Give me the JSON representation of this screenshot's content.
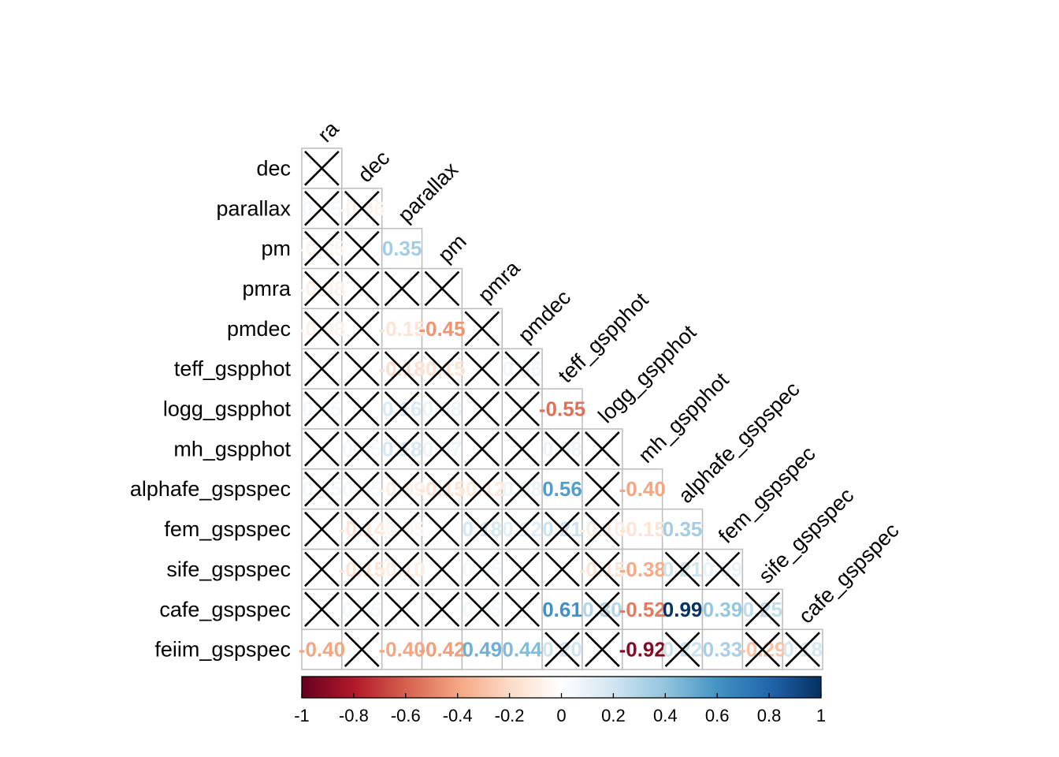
{
  "chart_data": {
    "type": "heatmap",
    "variables": [
      "ra",
      "dec",
      "parallax",
      "pm",
      "pmra",
      "pmdec",
      "teff_gspphot",
      "logg_gspphot",
      "mh_gspphot",
      "alphafe_gspspec",
      "fem_gspspec",
      "sife_gspspec",
      "cafe_gspspec",
      "feiim_gspspec"
    ],
    "row_labels": [
      "dec",
      "parallax",
      "pm",
      "pmra",
      "pmdec",
      "teff_gspphot",
      "logg_gspphot",
      "mh_gspphot",
      "alphafe_gspspec",
      "fem_gspspec",
      "sife_gspspec",
      "cafe_gspspec",
      "feiim_gspspec"
    ],
    "col_labels": [
      "ra",
      "dec",
      "parallax",
      "pm",
      "pmra",
      "pmdec",
      "teff_gspphot",
      "logg_gspphot",
      "mh_gspphot",
      "alphafe_gspspec",
      "fem_gspspec",
      "sife_gspspec",
      "cafe_gspspec"
    ],
    "cells": [
      {
        "row": "dec",
        "col": "ra",
        "value": null,
        "insignificant": true
      },
      {
        "row": "parallax",
        "col": "ra",
        "value": 0.05,
        "insignificant": true
      },
      {
        "row": "parallax",
        "col": "dec",
        "value": -0.06,
        "insignificant": true
      },
      {
        "row": "pm",
        "col": "ra",
        "value": -0.05,
        "insignificant": true
      },
      {
        "row": "pm",
        "col": "dec",
        "value": null,
        "insignificant": true
      },
      {
        "row": "pm",
        "col": "parallax",
        "value": 0.35,
        "insignificant": false
      },
      {
        "row": "pmra",
        "col": "ra",
        "value": -0.08,
        "insignificant": true
      },
      {
        "row": "pmra",
        "col": "dec",
        "value": null,
        "insignificant": true
      },
      {
        "row": "pmra",
        "col": "parallax",
        "value": null,
        "insignificant": true
      },
      {
        "row": "pmra",
        "col": "pm",
        "value": null,
        "insignificant": true
      },
      {
        "row": "pmdec",
        "col": "ra",
        "value": -0.08,
        "insignificant": true
      },
      {
        "row": "pmdec",
        "col": "dec",
        "value": null,
        "insignificant": true
      },
      {
        "row": "pmdec",
        "col": "parallax",
        "value": -0.15,
        "insignificant": false
      },
      {
        "row": "pmdec",
        "col": "pm",
        "value": -0.45,
        "insignificant": false
      },
      {
        "row": "pmdec",
        "col": "pmra",
        "value": null,
        "insignificant": true
      },
      {
        "row": "teff_gspphot",
        "col": "ra",
        "value": null,
        "insignificant": true
      },
      {
        "row": "teff_gspphot",
        "col": "dec",
        "value": null,
        "insignificant": true
      },
      {
        "row": "teff_gspphot",
        "col": "parallax",
        "value": -0.18,
        "insignificant": true
      },
      {
        "row": "teff_gspphot",
        "col": "pm",
        "value": -0.15,
        "insignificant": true
      },
      {
        "row": "teff_gspphot",
        "col": "pmra",
        "value": null,
        "insignificant": true
      },
      {
        "row": "teff_gspphot",
        "col": "pmdec",
        "value": 0.06,
        "insignificant": true
      },
      {
        "row": "logg_gspphot",
        "col": "ra",
        "value": 0.05,
        "insignificant": true
      },
      {
        "row": "logg_gspphot",
        "col": "dec",
        "value": null,
        "insignificant": true
      },
      {
        "row": "logg_gspphot",
        "col": "parallax",
        "value": 0.16,
        "insignificant": true
      },
      {
        "row": "logg_gspphot",
        "col": "pm",
        "value": 0.08,
        "insignificant": true
      },
      {
        "row": "logg_gspphot",
        "col": "pmra",
        "value": null,
        "insignificant": true
      },
      {
        "row": "logg_gspphot",
        "col": "pmdec",
        "value": null,
        "insignificant": true
      },
      {
        "row": "logg_gspphot",
        "col": "teff_gspphot",
        "value": -0.55,
        "insignificant": false
      },
      {
        "row": "mh_gspphot",
        "col": "ra",
        "value": null,
        "insignificant": true
      },
      {
        "row": "mh_gspphot",
        "col": "dec",
        "value": 0.05,
        "insignificant": true
      },
      {
        "row": "mh_gspphot",
        "col": "parallax",
        "value": 0.18,
        "insignificant": true
      },
      {
        "row": "mh_gspphot",
        "col": "pm",
        "value": 0.07,
        "insignificant": true
      },
      {
        "row": "mh_gspphot",
        "col": "pmra",
        "value": null,
        "insignificant": true
      },
      {
        "row": "mh_gspphot",
        "col": "pmdec",
        "value": null,
        "insignificant": true
      },
      {
        "row": "mh_gspphot",
        "col": "teff_gspphot",
        "value": 0.08,
        "insignificant": true
      },
      {
        "row": "mh_gspphot",
        "col": "logg_gspphot",
        "value": null,
        "insignificant": true
      },
      {
        "row": "alphafe_gspspec",
        "col": "ra",
        "value": 0.05,
        "insignificant": true
      },
      {
        "row": "alphafe_gspspec",
        "col": "dec",
        "value": 0.05,
        "insignificant": true
      },
      {
        "row": "alphafe_gspspec",
        "col": "parallax",
        "value": -0.09,
        "insignificant": true
      },
      {
        "row": "alphafe_gspspec",
        "col": "pm",
        "value": -0.15,
        "insignificant": true
      },
      {
        "row": "alphafe_gspspec",
        "col": "pmra",
        "value": -0.12,
        "insignificant": true
      },
      {
        "row": "alphafe_gspspec",
        "col": "pmdec",
        "value": 0.08,
        "insignificant": true
      },
      {
        "row": "alphafe_gspspec",
        "col": "teff_gspphot",
        "value": 0.56,
        "insignificant": false
      },
      {
        "row": "alphafe_gspspec",
        "col": "logg_gspphot",
        "value": null,
        "insignificant": true
      },
      {
        "row": "alphafe_gspspec",
        "col": "mh_gspphot",
        "value": -0.4,
        "insignificant": false
      },
      {
        "row": "fem_gspspec",
        "col": "ra",
        "value": null,
        "insignificant": true
      },
      {
        "row": "fem_gspspec",
        "col": "dec",
        "value": -0.14,
        "insignificant": true
      },
      {
        "row": "fem_gspspec",
        "col": "parallax",
        "value": -0.05,
        "insignificant": true
      },
      {
        "row": "fem_gspspec",
        "col": "pm",
        "value": null,
        "insignificant": true
      },
      {
        "row": "fem_gspspec",
        "col": "pmra",
        "value": 0.18,
        "insignificant": true
      },
      {
        "row": "fem_gspspec",
        "col": "pmdec",
        "value": 0.12,
        "insignificant": true
      },
      {
        "row": "fem_gspspec",
        "col": "teff_gspphot",
        "value": 0.21,
        "insignificant": true
      },
      {
        "row": "fem_gspspec",
        "col": "logg_gspphot",
        "value": -0.1,
        "insignificant": true
      },
      {
        "row": "fem_gspspec",
        "col": "mh_gspphot",
        "value": -0.15,
        "insignificant": false
      },
      {
        "row": "fem_gspspec",
        "col": "alphafe_gspspec",
        "value": 0.35,
        "insignificant": false
      },
      {
        "row": "sife_gspspec",
        "col": "ra",
        "value": null,
        "insignificant": true
      },
      {
        "row": "sife_gspspec",
        "col": "dec",
        "value": -0.15,
        "insignificant": true
      },
      {
        "row": "sife_gspspec",
        "col": "parallax",
        "value": -0.1,
        "insignificant": true
      },
      {
        "row": "sife_gspspec",
        "col": "pm",
        "value": null,
        "insignificant": true
      },
      {
        "row": "sife_gspspec",
        "col": "pmra",
        "value": 0.05,
        "insignificant": true
      },
      {
        "row": "sife_gspspec",
        "col": "pmdec",
        "value": null,
        "insignificant": true
      },
      {
        "row": "sife_gspspec",
        "col": "teff_gspphot",
        "value": null,
        "insignificant": true
      },
      {
        "row": "sife_gspspec",
        "col": "logg_gspphot",
        "value": -0.15,
        "insignificant": true
      },
      {
        "row": "sife_gspspec",
        "col": "mh_gspphot",
        "value": -0.38,
        "insignificant": false
      },
      {
        "row": "sife_gspspec",
        "col": "alphafe_gspspec",
        "value": 0.21,
        "insignificant": true
      },
      {
        "row": "sife_gspspec",
        "col": "fem_gspspec",
        "value": 0.09,
        "insignificant": true
      },
      {
        "row": "cafe_gspspec",
        "col": "ra",
        "value": null,
        "insignificant": true
      },
      {
        "row": "cafe_gspspec",
        "col": "dec",
        "value": 0.05,
        "insignificant": true
      },
      {
        "row": "cafe_gspspec",
        "col": "parallax",
        "value": null,
        "insignificant": true
      },
      {
        "row": "cafe_gspspec",
        "col": "pm",
        "value": null,
        "insignificant": true
      },
      {
        "row": "cafe_gspspec",
        "col": "pmra",
        "value": 0.05,
        "insignificant": true
      },
      {
        "row": "cafe_gspspec",
        "col": "pmdec",
        "value": null,
        "insignificant": true
      },
      {
        "row": "cafe_gspspec",
        "col": "teff_gspphot",
        "value": 0.61,
        "insignificant": false
      },
      {
        "row": "cafe_gspspec",
        "col": "logg_gspphot",
        "value": 0.3,
        "insignificant": true
      },
      {
        "row": "cafe_gspspec",
        "col": "mh_gspphot",
        "value": -0.52,
        "insignificant": false
      },
      {
        "row": "cafe_gspspec",
        "col": "alphafe_gspspec",
        "value": 0.99,
        "insignificant": false
      },
      {
        "row": "cafe_gspspec",
        "col": "fem_gspspec",
        "value": 0.39,
        "insignificant": false
      },
      {
        "row": "cafe_gspspec",
        "col": "sife_gspspec",
        "value": 0.25,
        "insignificant": true
      },
      {
        "row": "feiim_gspspec",
        "col": "ra",
        "value": -0.4,
        "insignificant": false
      },
      {
        "row": "feiim_gspspec",
        "col": "dec",
        "value": null,
        "insignificant": true
      },
      {
        "row": "feiim_gspspec",
        "col": "parallax",
        "value": -0.4,
        "insignificant": false
      },
      {
        "row": "feiim_gspspec",
        "col": "pm",
        "value": -0.42,
        "insignificant": false
      },
      {
        "row": "feiim_gspspec",
        "col": "pmra",
        "value": 0.49,
        "insignificant": false
      },
      {
        "row": "feiim_gspspec",
        "col": "pmdec",
        "value": 0.44,
        "insignificant": false
      },
      {
        "row": "feiim_gspspec",
        "col": "teff_gspphot",
        "value": 0.2,
        "insignificant": true
      },
      {
        "row": "feiim_gspspec",
        "col": "logg_gspphot",
        "value": null,
        "insignificant": true
      },
      {
        "row": "feiim_gspspec",
        "col": "mh_gspphot",
        "value": -0.92,
        "insignificant": false
      },
      {
        "row": "feiim_gspspec",
        "col": "alphafe_gspspec",
        "value": 0.22,
        "insignificant": true
      },
      {
        "row": "feiim_gspspec",
        "col": "fem_gspspec",
        "value": 0.33,
        "insignificant": false
      },
      {
        "row": "feiim_gspspec",
        "col": "sife_gspspec",
        "value": -0.29,
        "insignificant": true
      },
      {
        "row": "feiim_gspspec",
        "col": "cafe_gspspec",
        "value": 0.18,
        "insignificant": true
      }
    ],
    "colorbar": {
      "range": [
        -1,
        1
      ],
      "ticks": [
        "-1",
        "-0.8",
        "-0.6",
        "-0.4",
        "-0.2",
        "0",
        "0.2",
        "0.4",
        "0.6",
        "0.8",
        "1"
      ],
      "colors": [
        "#67001F",
        "#B2182B",
        "#D6604D",
        "#F4A582",
        "#FDDBC7",
        "#FFFFFF",
        "#D1E5F0",
        "#92C5DE",
        "#4393C3",
        "#2166AC",
        "#053061"
      ]
    },
    "grid": true,
    "legend": "bottom"
  }
}
